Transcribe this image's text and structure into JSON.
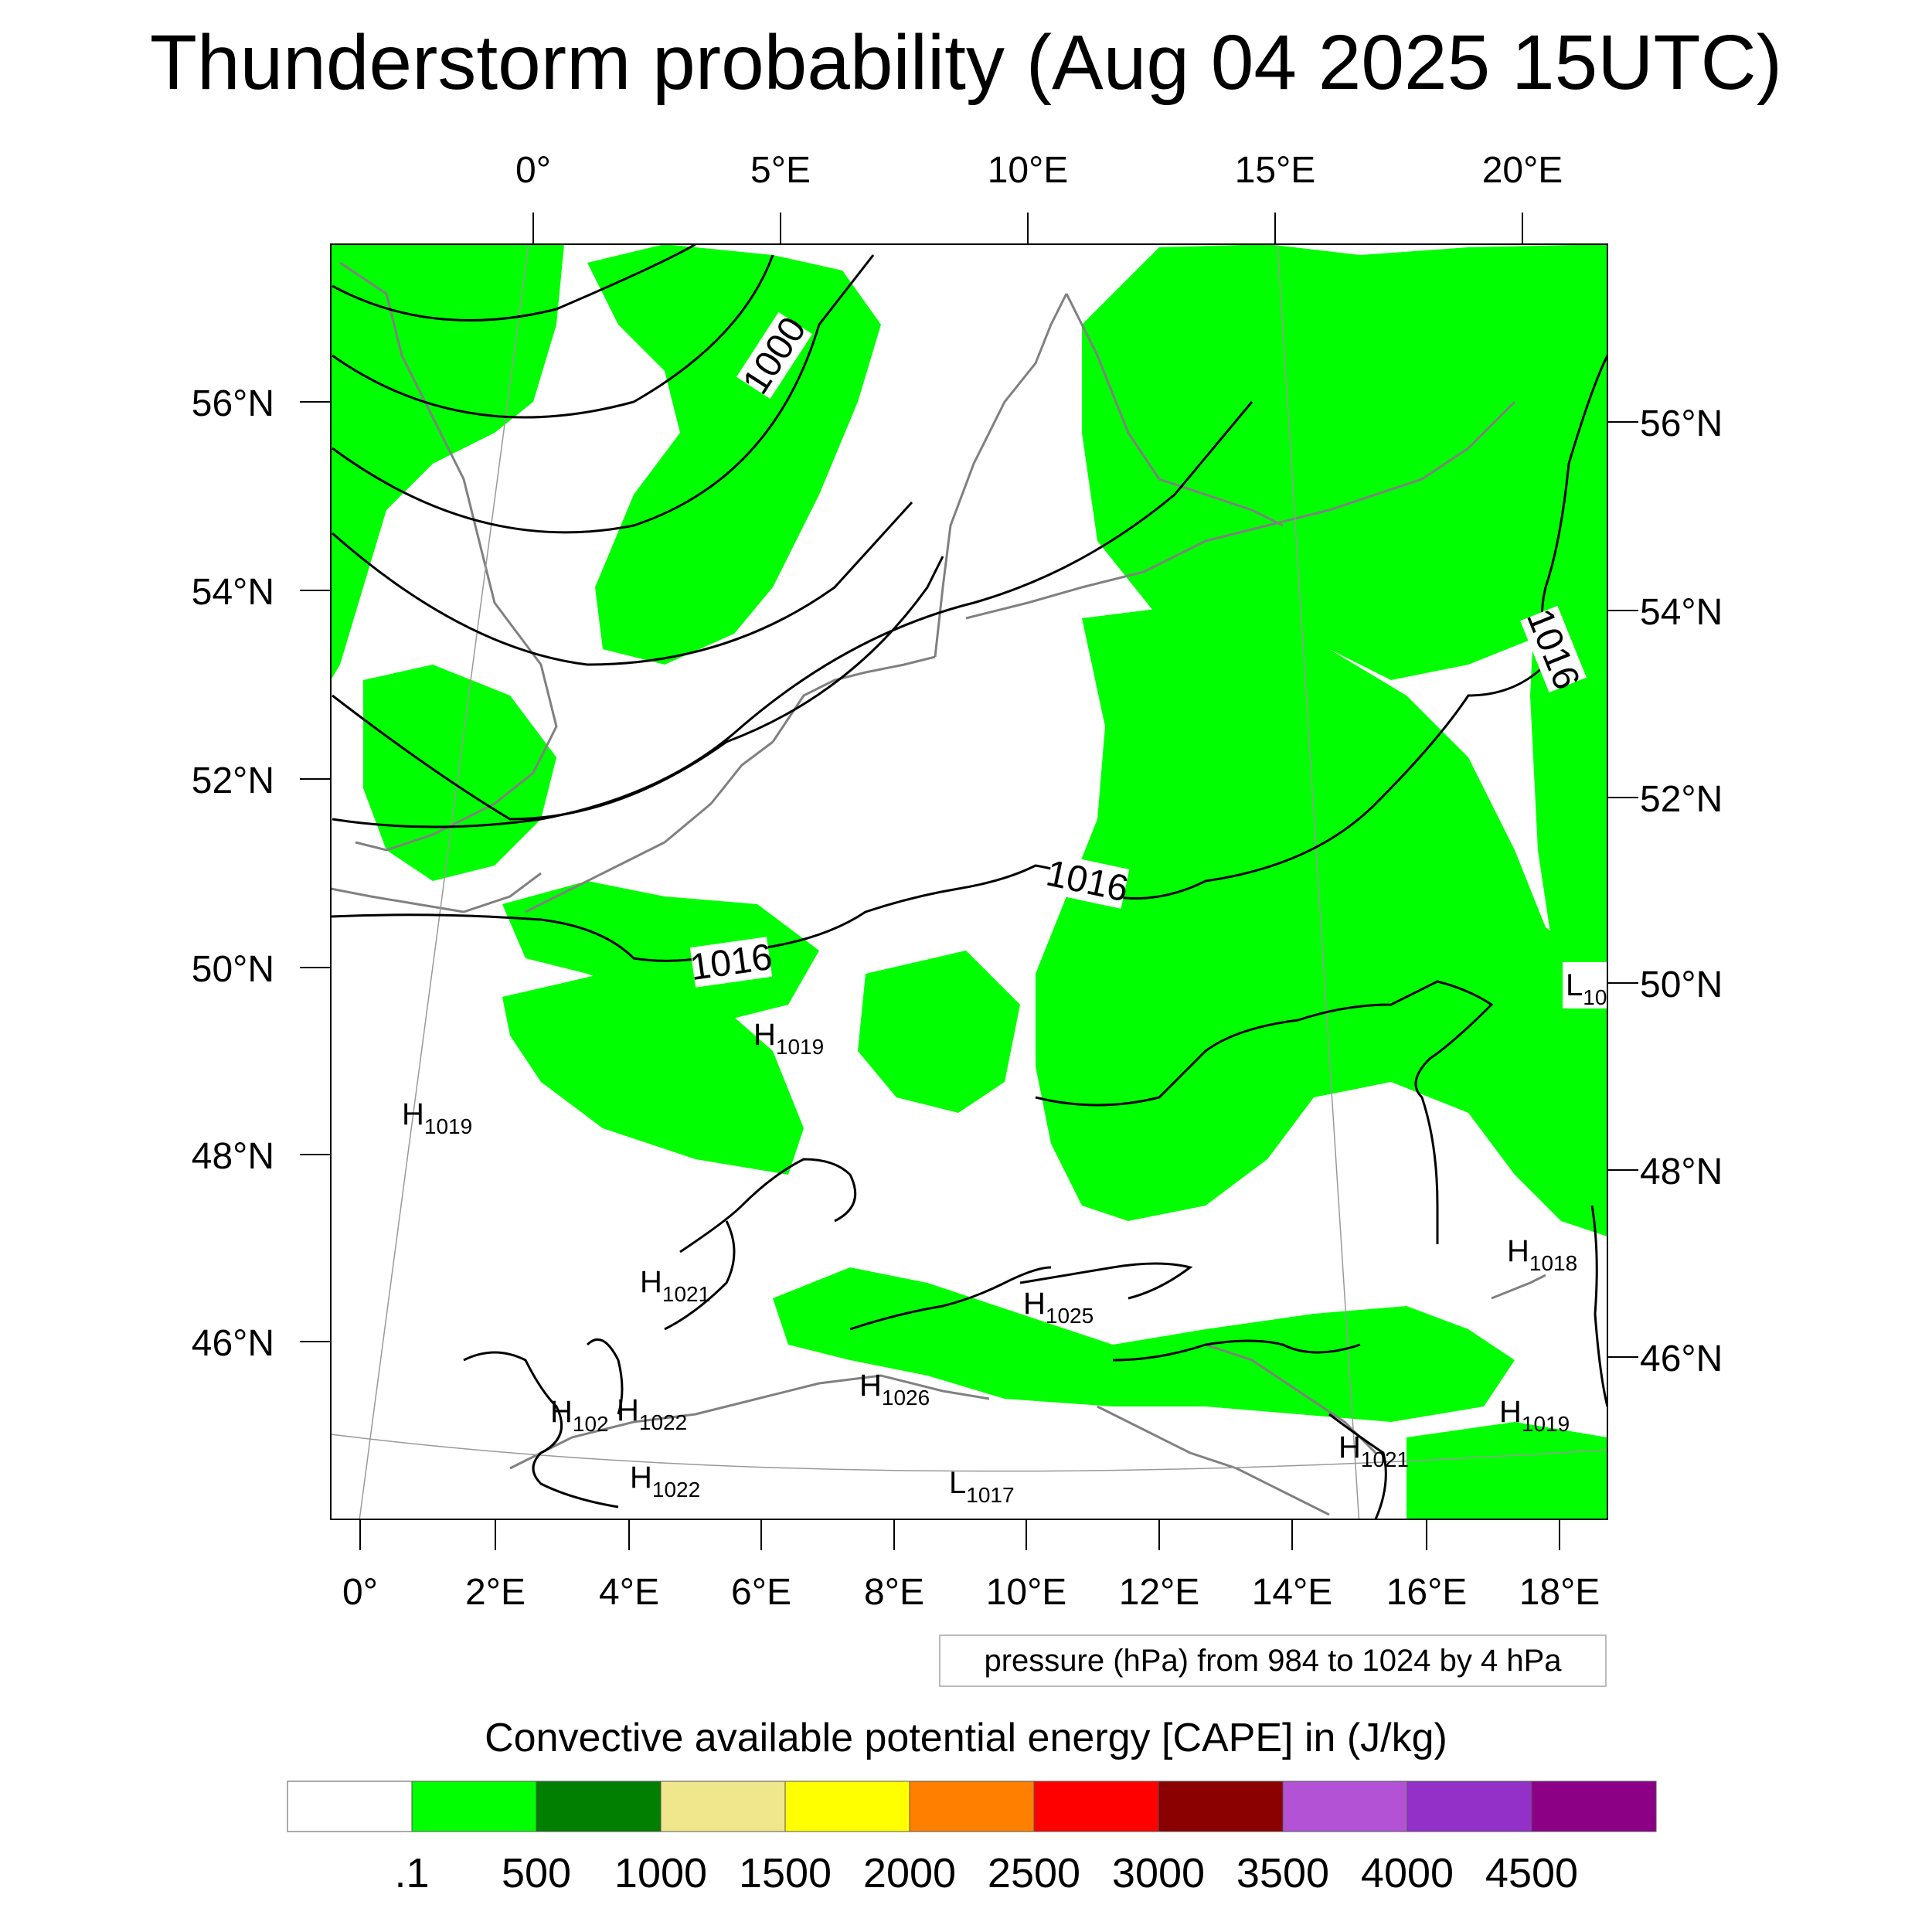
{
  "title": "Thunderstorm probability (Aug 04 2025 15UTC)",
  "axes": {
    "top_lon_ticks": [
      "0°",
      "5°E",
      "10°E",
      "15°E",
      "20°E"
    ],
    "bottom_lon_ticks": [
      "0°",
      "2°E",
      "4°E",
      "6°E",
      "8°E",
      "10°E",
      "12°E",
      "14°E",
      "16°E",
      "18°E"
    ],
    "left_lat_ticks": [
      "56°N",
      "54°N",
      "52°N",
      "50°N",
      "48°N",
      "46°N"
    ],
    "right_lat_ticks": [
      "56°N",
      "54°N",
      "52°N",
      "50°N",
      "48°N",
      "46°N"
    ]
  },
  "contour_labels": [
    {
      "id": "c1000",
      "text": "1000"
    },
    {
      "id": "c1016a",
      "text": "1016"
    },
    {
      "id": "c1016b",
      "text": "1016"
    },
    {
      "id": "c1016c",
      "text": "1016"
    }
  ],
  "pressure_centers": [
    {
      "letter": "H",
      "value": "1019"
    },
    {
      "letter": "H",
      "value": "1019"
    },
    {
      "letter": "H",
      "value": "1021"
    },
    {
      "letter": "H",
      "value": "1025"
    },
    {
      "letter": "H",
      "value": "102"
    },
    {
      "letter": "H",
      "value": "1022"
    },
    {
      "letter": "H",
      "value": "1022"
    },
    {
      "letter": "H",
      "value": "1026"
    },
    {
      "letter": "L",
      "value": "1017"
    },
    {
      "letter": "H",
      "value": "1021"
    },
    {
      "letter": "H",
      "value": "1018"
    },
    {
      "letter": "H",
      "value": "1019"
    },
    {
      "letter": "L",
      "value": "10"
    }
  ],
  "pressure_note": "pressure (hPa) from 984 to 1024 by 4 hPa",
  "colorbar": {
    "title": "Convective available potential energy [CAPE] in (J/kg)",
    "colors": [
      "#ffffff",
      "#00ff00",
      "#007f00",
      "#f0e68c",
      "#ffff00",
      "#ff8000",
      "#ff0000",
      "#8b0000",
      "#b452d6",
      "#9230c8",
      "#8b0085"
    ],
    "labels": [
      ".1",
      "500",
      "1000",
      "1500",
      "2000",
      "2500",
      "3000",
      "3500",
      "4000",
      "4500"
    ]
  },
  "field_color": "#00ff00",
  "coast_color": "#808080"
}
